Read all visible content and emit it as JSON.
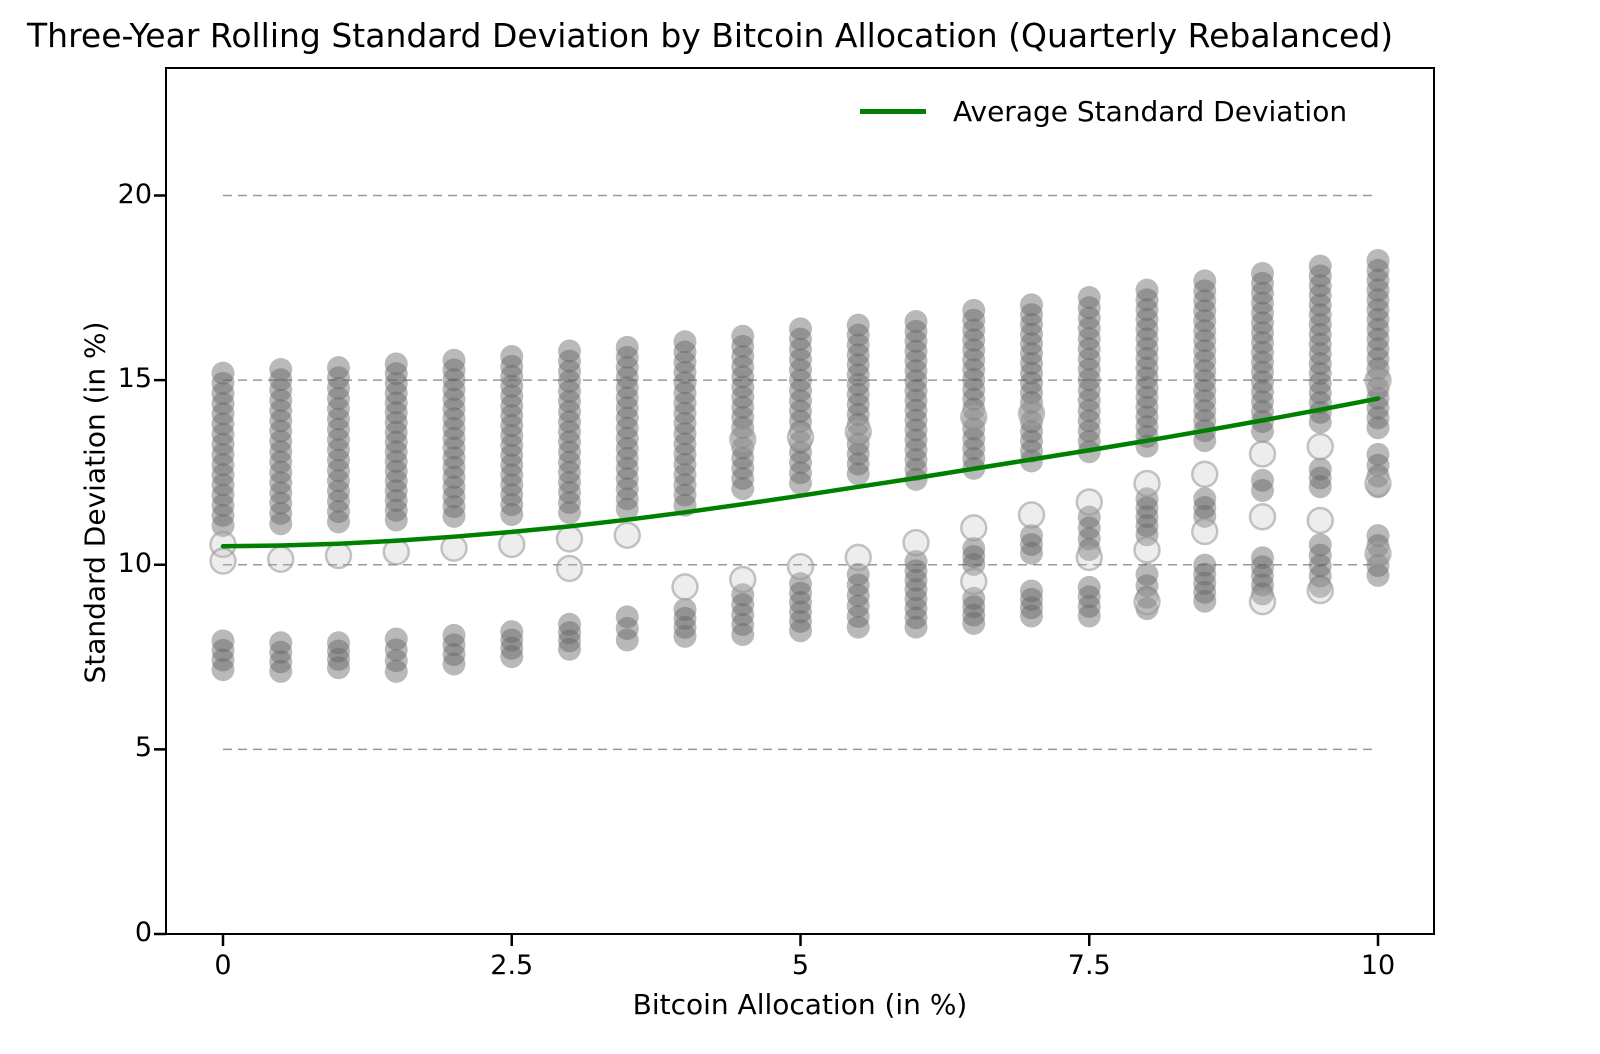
{
  "title": "Three-Year Rolling Standard Deviation by Bitcoin Allocation (Quarterly Rebalanced)",
  "legend": {
    "label": "Average Standard Deviation",
    "line_color": "#008000",
    "position": "upper right",
    "frame": false
  },
  "axes": {
    "xlabel": "Bitcoin Allocation (in %)",
    "ylabel": "Standard Deviation (in %)",
    "x_ticks": [
      0,
      2.5,
      5,
      7.5,
      10
    ],
    "x_tick_labels": [
      "0",
      "2.5",
      "5",
      "7.5",
      "10"
    ],
    "y_ticks": [
      0,
      5,
      10,
      15,
      20
    ],
    "y_tick_labels": [
      "0",
      "5",
      "10",
      "15",
      "20"
    ],
    "xlim": [
      -0.49,
      10.49
    ],
    "ylim": [
      0,
      23.45
    ]
  },
  "style": {
    "scatter_color": "#8a8a8a",
    "outlier_ring_color": "#bdbdbd",
    "grid_color": "#999999",
    "grid_dashed": true,
    "spine_color": "#000000",
    "background": "#ffffff"
  },
  "chart_data": {
    "type": "scatter",
    "title": "Three-Year Rolling Standard Deviation by Bitcoin Allocation (Quarterly Rebalanced)",
    "xlabel": "Bitcoin Allocation (in %)",
    "ylabel": "Standard Deviation (in %)",
    "x_description": "Bitcoin allocation from 0% to 10% in 0.5% steps; each column is the distribution of three-year rolling standard deviations",
    "grid_y_values": [
      5,
      10,
      15,
      20
    ],
    "grid_x_extent": [
      0,
      10
    ],
    "average_line": {
      "name": "Average Standard Deviation",
      "color": "#008000",
      "x": [
        0,
        0.5,
        1,
        1.5,
        2,
        2.5,
        3,
        3.5,
        4,
        4.5,
        5,
        5.5,
        6,
        6.5,
        7,
        7.5,
        8,
        8.5,
        9,
        9.5,
        10
      ],
      "y": [
        10.5,
        10.52,
        10.57,
        10.65,
        10.76,
        10.89,
        11.04,
        11.22,
        11.42,
        11.64,
        11.87,
        12.11,
        12.35,
        12.6,
        12.85,
        13.1,
        13.36,
        13.63,
        13.91,
        14.2,
        14.5
      ]
    },
    "scatter_columns": [
      {
        "x": 0.0,
        "upper_band": [
          10.75,
          15.5
        ],
        "mid_band": null,
        "lower_band": [
          6.85,
          8.25
        ],
        "light_points": [
          10.55,
          10.1
        ]
      },
      {
        "x": 0.5,
        "upper_band": [
          10.8,
          15.6
        ],
        "mid_band": null,
        "lower_band": [
          6.8,
          8.2
        ],
        "light_points": [
          10.15
        ]
      },
      {
        "x": 1.0,
        "upper_band": [
          10.85,
          15.65
        ],
        "mid_band": null,
        "lower_band": [
          6.9,
          8.2
        ],
        "light_points": [
          10.25
        ]
      },
      {
        "x": 1.5,
        "upper_band": [
          10.9,
          15.75
        ],
        "mid_band": null,
        "lower_band": [
          6.8,
          8.3
        ],
        "light_points": [
          10.35
        ]
      },
      {
        "x": 2.0,
        "upper_band": [
          11.0,
          15.85
        ],
        "mid_band": null,
        "lower_band": [
          7.0,
          8.4
        ],
        "light_points": [
          10.45
        ]
      },
      {
        "x": 2.5,
        "upper_band": [
          11.05,
          15.95
        ],
        "mid_band": null,
        "lower_band": [
          7.2,
          8.5
        ],
        "light_points": [
          10.55
        ]
      },
      {
        "x": 3.0,
        "upper_band": [
          11.1,
          16.1
        ],
        "mid_band": null,
        "lower_band": [
          7.4,
          8.7
        ],
        "light_points": [
          10.7,
          9.9
        ]
      },
      {
        "x": 3.5,
        "upper_band": [
          11.2,
          16.2
        ],
        "mid_band": null,
        "lower_band": [
          7.65,
          8.9
        ],
        "light_points": [
          10.8
        ]
      },
      {
        "x": 4.0,
        "upper_band": [
          11.3,
          16.35
        ],
        "mid_band": null,
        "lower_band": [
          7.75,
          9.1
        ],
        "light_points": [
          9.4
        ]
      },
      {
        "x": 4.5,
        "upper_band": [
          11.75,
          16.5
        ],
        "mid_band": null,
        "lower_band": [
          7.8,
          9.5
        ],
        "light_points": [
          13.4,
          9.6
        ]
      },
      {
        "x": 5.0,
        "upper_band": [
          11.9,
          16.7
        ],
        "mid_band": null,
        "lower_band": [
          7.9,
          9.8
        ],
        "light_points": [
          13.45,
          9.95
        ]
      },
      {
        "x": 5.5,
        "upper_band": [
          12.15,
          16.8
        ],
        "mid_band": null,
        "lower_band": [
          8.0,
          10.05
        ],
        "light_points": [
          13.6,
          10.2
        ]
      },
      {
        "x": 6.0,
        "upper_band": [
          12.0,
          16.9
        ],
        "mid_band": null,
        "lower_band": [
          8.0,
          10.4
        ],
        "light_points": [
          10.6
        ]
      },
      {
        "x": 6.5,
        "upper_band": [
          12.3,
          17.2
        ],
        "mid_band": [
          9.7,
          10.75
        ],
        "lower_band": [
          8.1,
          9.4
        ],
        "light_points": [
          14.0,
          11.0,
          9.55
        ]
      },
      {
        "x": 7.0,
        "upper_band": [
          12.5,
          17.35
        ],
        "mid_band": [
          10.0,
          11.1
        ],
        "lower_band": [
          8.3,
          9.6
        ],
        "light_points": [
          14.1,
          11.35
        ]
      },
      {
        "x": 7.5,
        "upper_band": [
          12.75,
          17.55
        ],
        "mid_band": [
          10.1,
          11.6
        ],
        "lower_band": [
          8.3,
          9.7
        ],
        "light_points": [
          11.7,
          10.2
        ]
      },
      {
        "x": 8.0,
        "upper_band": [
          12.9,
          17.75
        ],
        "mid_band": [
          10.5,
          12.1
        ],
        "lower_band": [
          8.5,
          10.05
        ],
        "light_points": [
          12.2,
          10.4,
          9.0
        ]
      },
      {
        "x": 8.5,
        "upper_band": [
          13.05,
          18.0
        ],
        "mid_band": [
          11.0,
          12.1
        ],
        "lower_band": [
          8.7,
          10.3
        ],
        "light_points": [
          12.45,
          10.9
        ]
      },
      {
        "x": 9.0,
        "upper_band": [
          13.3,
          18.2
        ],
        "mid_band": [
          11.7,
          12.6
        ],
        "lower_band": [
          8.9,
          10.5
        ],
        "light_points": [
          13.0,
          11.3,
          9.0
        ]
      },
      {
        "x": 9.5,
        "upper_band": [
          13.55,
          18.4
        ],
        "mid_band": [
          11.8,
          12.9
        ],
        "lower_band": [
          9.1,
          10.85
        ],
        "light_points": [
          13.2,
          11.2,
          9.3
        ]
      },
      {
        "x": 10.0,
        "upper_band": [
          13.4,
          18.55
        ],
        "mid_band": [
          11.8,
          13.3
        ],
        "lower_band": [
          9.4,
          11.1
        ],
        "light_points": [
          15.0,
          12.2,
          10.3
        ]
      }
    ],
    "legend_entries": [
      "Average Standard Deviation"
    ],
    "legend_position": "upper right",
    "grid": "horizontal dashed lines at y = 5, 10, 15, 20 spanning x = 0 to 10"
  }
}
